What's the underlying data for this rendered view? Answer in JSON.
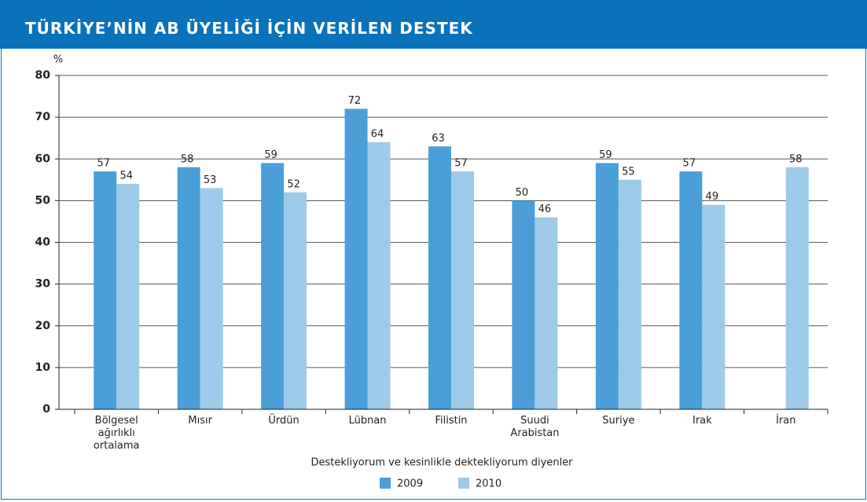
{
  "chart_data": {
    "type": "bar",
    "title": "TÜRKİYE’NİN AB ÜYELİĞİ İÇİN VERİLEN DESTEK",
    "y_label": "%",
    "x_label": "Destekliyorum ve kesinlikle dektekliyorum diyenler",
    "categories": [
      "Bölgesel\nağırlıklı\nortalama",
      "Mısır",
      "Ürdün",
      "Lübnan",
      "Filistin",
      "Suudi\nArabistan",
      "Suriye",
      "Irak",
      "İran"
    ],
    "series": [
      {
        "name": "2009",
        "color": "#4a9fd8",
        "values": [
          57,
          58,
          59,
          72,
          63,
          50,
          59,
          57,
          null
        ]
      },
      {
        "name": "2010",
        "color": "#9dcae8",
        "values": [
          54,
          53,
          52,
          64,
          57,
          46,
          55,
          49,
          58
        ]
      }
    ],
    "ylim": [
      0,
      80
    ],
    "yticks": [
      0,
      10,
      20,
      30,
      40,
      50,
      60,
      70,
      80
    ],
    "grid": true,
    "legend": "bottom"
  }
}
